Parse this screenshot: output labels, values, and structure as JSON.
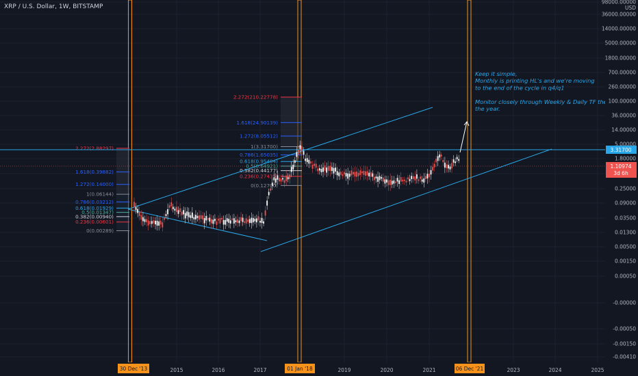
{
  "title": "XRP / U.S. Dollar, 1W, BITSTAMP",
  "currency_label": "USD",
  "colors": {
    "background": "#131722",
    "candle_up": "#ffffff",
    "candle_down": "#ef5350",
    "trend": "#2aa7e8",
    "orange": "#f7931a",
    "fib_red": "#f23645",
    "fib_blue": "#2962ff",
    "fib_cyan": "#2aa7e8",
    "fib_teal": "#4caf9e",
    "fib_white": "#d1d4dc",
    "fib_gray": "#8a8e99"
  },
  "annotation": {
    "lines": [
      "Keep it simple,",
      "Monthly is printing HL's and we're moving",
      "to the end of the cycle in q4/q1",
      "",
      "Monitor closely through Weekly & Daily TF the last q of",
      "the year."
    ]
  },
  "price_labels": {
    "resistance": "3.31700",
    "current": "1.10974",
    "countdown": "3d 6h"
  },
  "markers": [
    "30 Dec '13",
    "01 Jan '18",
    "06 Dec '21"
  ],
  "fib_sets": [
    {
      "id": "fib-2014",
      "levels": [
        {
          "label": "2.272(2.88297)",
          "value": 2.88297,
          "color": "fib_red"
        },
        {
          "label": "1.618(0.39882)",
          "value": 0.39882,
          "color": "fib_blue"
        },
        {
          "label": "1.272(0.14000)",
          "value": 0.14,
          "color": "fib_blue"
        },
        {
          "label": "1(0.06144)",
          "value": 0.06144,
          "color": "fib_gray"
        },
        {
          "label": "0.786(0.03212)",
          "value": 0.03212,
          "color": "fib_blue"
        },
        {
          "label": "0.618(0.01929)",
          "value": 0.01929,
          "color": "fib_cyan"
        },
        {
          "label": "0.5(0.01347)",
          "value": 0.01347,
          "color": "fib_teal"
        },
        {
          "label": "0.382(0.00940)",
          "value": 0.0094,
          "color": "fib_white"
        },
        {
          "label": "0.236(0.00601)",
          "value": 0.00601,
          "color": "fib_red"
        },
        {
          "label": "0(0.00289)",
          "value": 0.00289,
          "color": "fib_gray"
        }
      ]
    },
    {
      "id": "fib-2018",
      "levels": [
        {
          "label": "2.272(210.22778)",
          "value": 210.22778,
          "color": "fib_red"
        },
        {
          "label": "1.618(24.90139)",
          "value": 24.90139,
          "color": "fib_blue"
        },
        {
          "label": "1.272(8.05512)",
          "value": 8.05512,
          "color": "fib_blue"
        },
        {
          "label": "1(3.31700)",
          "value": 3.317,
          "color": "fib_gray"
        },
        {
          "label": "0.786(1.65035)",
          "value": 1.65035,
          "color": "fib_blue"
        },
        {
          "label": "0.618(0.95404)",
          "value": 0.95404,
          "color": "fib_cyan"
        },
        {
          "label": "0.5(0.64921)",
          "value": 0.64921,
          "color": "fib_teal"
        },
        {
          "label": "0.382(0.44177)",
          "value": 0.44177,
          "color": "fib_white"
        },
        {
          "label": "0.236(0.27435)",
          "value": 0.27435,
          "color": "fib_red"
        },
        {
          "label": "0(0.12700)",
          "value": 0.127,
          "color": "fib_gray"
        }
      ]
    }
  ],
  "chart_data": {
    "type": "line",
    "title": "XRP / U.S. Dollar, 1W, BITSTAMP",
    "y_scale": "log",
    "xlabel": "",
    "ylabel": "USD",
    "x_ticks": [
      "2015",
      "2016",
      "2017",
      "2019",
      "2020",
      "2021",
      "2023",
      "2024",
      "2025"
    ],
    "y_ticks": [
      "98000.00000",
      "36000.00000",
      "14000.00000",
      "5000.00000",
      "1800.00000",
      "700.00000",
      "260.00000",
      "100.00000",
      "36.00000",
      "14.00000",
      "5.00000",
      "1.80000",
      "0.70000",
      "0.25000",
      "0.09000",
      "0.03500",
      "0.01300",
      "0.00500",
      "0.00150",
      "0.00050",
      "-0.00000",
      "-0.00050",
      "-0.00150",
      "-0.00410"
    ],
    "series": [
      {
        "values": [
          {
            "date": "2014-01",
            "price": 0.022
          },
          {
            "date": "2014-02",
            "price": 0.016
          },
          {
            "date": "2014-04",
            "price": 0.0065
          },
          {
            "date": "2014-06",
            "price": 0.0055
          },
          {
            "date": "2014-09",
            "price": 0.0052
          },
          {
            "date": "2014-11",
            "price": 0.024
          },
          {
            "date": "2015-01",
            "price": 0.018
          },
          {
            "date": "2015-03",
            "price": 0.012
          },
          {
            "date": "2015-06",
            "price": 0.0095
          },
          {
            "date": "2015-08",
            "price": 0.0085
          },
          {
            "date": "2015-11",
            "price": 0.0058
          },
          {
            "date": "2016-01",
            "price": 0.0065
          },
          {
            "date": "2016-05",
            "price": 0.0072
          },
          {
            "date": "2016-08",
            "price": 0.0068
          },
          {
            "date": "2016-11",
            "price": 0.0075
          },
          {
            "date": "2017-02",
            "price": 0.0065
          },
          {
            "date": "2017-03",
            "price": 0.034
          },
          {
            "date": "2017-05",
            "price": 0.24
          },
          {
            "date": "2017-07",
            "price": 0.19
          },
          {
            "date": "2017-09",
            "price": 0.2
          },
          {
            "date": "2017-12",
            "price": 2.3
          },
          {
            "date": "2018-01",
            "price": 3.2
          },
          {
            "date": "2018-02",
            "price": 1.1
          },
          {
            "date": "2018-04",
            "price": 0.7
          },
          {
            "date": "2018-06",
            "price": 0.48
          },
          {
            "date": "2018-09",
            "price": 0.55
          },
          {
            "date": "2018-12",
            "price": 0.35
          },
          {
            "date": "2019-03",
            "price": 0.31
          },
          {
            "date": "2019-06",
            "price": 0.42
          },
          {
            "date": "2019-09",
            "price": 0.27
          },
          {
            "date": "2019-12",
            "price": 0.2
          },
          {
            "date": "2020-03",
            "price": 0.17
          },
          {
            "date": "2020-06",
            "price": 0.19
          },
          {
            "date": "2020-09",
            "price": 0.24
          },
          {
            "date": "2020-12",
            "price": 0.22
          },
          {
            "date": "2021-02",
            "price": 0.5
          },
          {
            "date": "2021-04",
            "price": 1.7
          },
          {
            "date": "2021-06",
            "price": 0.65
          },
          {
            "date": "2021-07",
            "price": 0.6
          },
          {
            "date": "2021-09",
            "price": 1.2
          },
          {
            "date": "2021-10",
            "price": 1.1
          }
        ]
      }
    ]
  }
}
